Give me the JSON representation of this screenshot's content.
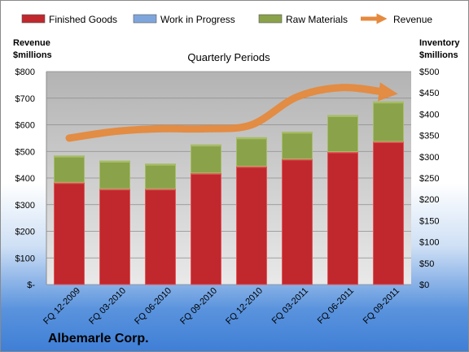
{
  "colors": {
    "finished_goods": "#c0282d",
    "work_in_progress": "#7fa6dc",
    "raw_materials": "#8aa24a",
    "revenue": "#e58a3e"
  },
  "legend": [
    {
      "label": "Finished Goods",
      "key": "finished_goods",
      "kind": "box"
    },
    {
      "label": "Work in Progress",
      "key": "work_in_progress",
      "kind": "box"
    },
    {
      "label": "Raw Materials",
      "key": "raw_materials",
      "kind": "box"
    },
    {
      "label": "Revenue",
      "key": "revenue",
      "kind": "arrow"
    }
  ],
  "company": "Albemarle Corp.",
  "chart_data": {
    "type": "bar",
    "stacked": true,
    "title": "Quarterly Periods",
    "ylabel_left": [
      "Revenue",
      "$millions"
    ],
    "ylabel_right": [
      "Inventory",
      "$millions"
    ],
    "categories": [
      "FQ 12-2009",
      "FQ 03-2010",
      "FQ 06-2010",
      "FQ 09-2010",
      "FQ 12-2010",
      "FQ 03-2011",
      "FQ 06-2011",
      "FQ 09-2011"
    ],
    "series": [
      {
        "name": "Finished Goods",
        "axis": "right",
        "values": [
          240,
          225,
          225,
          262,
          278,
          295,
          312,
          336
        ]
      },
      {
        "name": "Work in Progress",
        "axis": "right",
        "values": [
          0,
          0,
          0,
          0,
          0,
          0,
          0,
          0
        ]
      },
      {
        "name": "Raw Materials",
        "axis": "right",
        "values": [
          62,
          65,
          58,
          66,
          67,
          63,
          85,
          93
        ]
      },
      {
        "name": "Revenue",
        "axis": "left",
        "type": "line",
        "values": [
          550,
          575,
          585,
          585,
          600,
          705,
          740,
          720
        ]
      }
    ],
    "left_axis": {
      "ylim": [
        0,
        800
      ],
      "ticks": [
        "$-",
        "$100",
        "$200",
        "$300",
        "$400",
        "$500",
        "$600",
        "$700",
        "$800"
      ]
    },
    "right_axis": {
      "ylim": [
        0,
        500
      ],
      "ticks": [
        "$0",
        "$50",
        "$100",
        "$150",
        "$200",
        "$250",
        "$300",
        "$350",
        "$400",
        "$450",
        "$500"
      ]
    },
    "grid": true,
    "legend_position": "top"
  }
}
